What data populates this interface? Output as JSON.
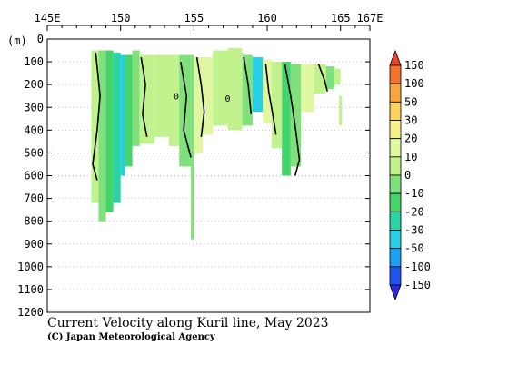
{
  "chart_data": {
    "type": "heatmap",
    "title": "Current Velocity along Kuril line, May 2023",
    "credit": "(C) Japan Meteorological Agency",
    "y_unit": "(m)",
    "x_ticks": [
      "145E",
      "150",
      "155",
      "160",
      "165",
      "167E"
    ],
    "x_tick_values": [
      145,
      150,
      155,
      160,
      165,
      167
    ],
    "xlim": [
      145,
      167
    ],
    "y_ticks": [
      "0",
      "100",
      "200",
      "300",
      "400",
      "500",
      "600",
      "700",
      "800",
      "900",
      "1000",
      "1100",
      "1200"
    ],
    "y_tick_values": [
      0,
      100,
      200,
      300,
      400,
      500,
      600,
      700,
      800,
      900,
      1000,
      1100,
      1200
    ],
    "ylim": [
      0,
      1200
    ],
    "y_inverted": true,
    "grid": true,
    "contour_labels": [
      {
        "text": "0",
        "lon": 153.8,
        "depth": 265
      },
      {
        "text": "0",
        "lon": 157.3,
        "depth": 275
      }
    ],
    "colorbar": {
      "labels": [
        "150",
        "100",
        "50",
        "30",
        "20",
        "10",
        "0",
        "-10",
        "-20",
        "-30",
        "-50",
        "-100",
        "-150"
      ],
      "bins": [
        {
          "lo": 150,
          "hi": null,
          "color": "#e8452a"
        },
        {
          "lo": 100,
          "hi": 150,
          "color": "#f4722f"
        },
        {
          "lo": 50,
          "hi": 100,
          "color": "#f9a440"
        },
        {
          "lo": 30,
          "hi": 50,
          "color": "#fbd35a"
        },
        {
          "lo": 20,
          "hi": 30,
          "color": "#f6f28a"
        },
        {
          "lo": 10,
          "hi": 20,
          "color": "#def7a0"
        },
        {
          "lo": 0,
          "hi": 10,
          "color": "#c2f28e"
        },
        {
          "lo": -10,
          "hi": 0,
          "color": "#80e07c"
        },
        {
          "lo": -20,
          "hi": -10,
          "color": "#45d36c"
        },
        {
          "lo": -30,
          "hi": -20,
          "color": "#2ad2a6"
        },
        {
          "lo": -50,
          "hi": -30,
          "color": "#27cfe2"
        },
        {
          "lo": -100,
          "hi": -50,
          "color": "#1f9ff2"
        },
        {
          "lo": -150,
          "hi": -100,
          "color": "#1f55ee"
        },
        {
          "lo": null,
          "hi": -150,
          "color": "#3128d9"
        }
      ]
    },
    "cells": [
      {
        "lon0": 148.0,
        "lon1": 148.5,
        "d0": 50,
        "d1": 720,
        "v": 5
      },
      {
        "lon0": 148.5,
        "lon1": 149.0,
        "d0": 50,
        "d1": 800,
        "v": -5
      },
      {
        "lon0": 149.0,
        "lon1": 149.5,
        "d0": 50,
        "d1": 760,
        "v": -15
      },
      {
        "lon0": 149.5,
        "lon1": 150.0,
        "d0": 60,
        "d1": 720,
        "v": -28
      },
      {
        "lon0": 150.0,
        "lon1": 150.3,
        "d0": 70,
        "d1": 600,
        "v": -35
      },
      {
        "lon0": 150.3,
        "lon1": 150.8,
        "d0": 70,
        "d1": 560,
        "v": -18
      },
      {
        "lon0": 150.8,
        "lon1": 151.3,
        "d0": 50,
        "d1": 470,
        "v": -10
      },
      {
        "lon0": 151.3,
        "lon1": 152.3,
        "d0": 70,
        "d1": 460,
        "v": 5
      },
      {
        "lon0": 152.3,
        "lon1": 153.3,
        "d0": 70,
        "d1": 430,
        "v": 8
      },
      {
        "lon0": 153.3,
        "lon1": 154.0,
        "d0": 70,
        "d1": 470,
        "v": 3
      },
      {
        "lon0": 154.0,
        "lon1": 154.8,
        "d0": 70,
        "d1": 560,
        "v": -5
      },
      {
        "lon0": 154.8,
        "lon1": 155.0,
        "d0": 70,
        "d1": 880,
        "v": -8
      },
      {
        "lon0": 155.0,
        "lon1": 155.6,
        "d0": 80,
        "d1": 500,
        "v": 12
      },
      {
        "lon0": 155.6,
        "lon1": 156.3,
        "d0": 80,
        "d1": 420,
        "v": 10
      },
      {
        "lon0": 156.3,
        "lon1": 157.3,
        "d0": 50,
        "d1": 380,
        "v": 6
      },
      {
        "lon0": 157.3,
        "lon1": 158.3,
        "d0": 40,
        "d1": 400,
        "v": 4
      },
      {
        "lon0": 158.3,
        "lon1": 159.0,
        "d0": 70,
        "d1": 380,
        "v": -8
      },
      {
        "lon0": 159.0,
        "lon1": 159.7,
        "d0": 80,
        "d1": 320,
        "v": -40
      },
      {
        "lon0": 159.7,
        "lon1": 160.3,
        "d0": 90,
        "d1": 370,
        "v": 12
      },
      {
        "lon0": 160.3,
        "lon1": 161.0,
        "d0": 100,
        "d1": 480,
        "v": 8
      },
      {
        "lon0": 161.0,
        "lon1": 161.6,
        "d0": 100,
        "d1": 600,
        "v": -15
      },
      {
        "lon0": 161.6,
        "lon1": 162.3,
        "d0": 110,
        "d1": 560,
        "v": -10
      },
      {
        "lon0": 162.3,
        "lon1": 163.2,
        "d0": 110,
        "d1": 320,
        "v": 10
      },
      {
        "lon0": 163.2,
        "lon1": 164.0,
        "d0": 110,
        "d1": 240,
        "v": 6
      },
      {
        "lon0": 164.0,
        "lon1": 164.6,
        "d0": 120,
        "d1": 220,
        "v": -6
      },
      {
        "lon0": 164.6,
        "lon1": 165.0,
        "d0": 130,
        "d1": 200,
        "v": 4
      },
      {
        "lon0": 164.9,
        "lon1": 165.1,
        "d0": 250,
        "d1": 380,
        "v": 5
      }
    ],
    "contours_zero": [
      [
        [
          148.3,
          60
        ],
        [
          148.6,
          250
        ],
        [
          148.4,
          400
        ],
        [
          148.1,
          550
        ],
        [
          148.4,
          620
        ]
      ],
      [
        [
          151.4,
          80
        ],
        [
          151.7,
          200
        ],
        [
          151.5,
          330
        ],
        [
          151.8,
          430
        ]
      ],
      [
        [
          154.1,
          100
        ],
        [
          154.5,
          250
        ],
        [
          154.3,
          400
        ],
        [
          154.8,
          520
        ]
      ],
      [
        [
          155.2,
          80
        ],
        [
          155.5,
          200
        ],
        [
          155.7,
          320
        ],
        [
          155.5,
          430
        ]
      ],
      [
        [
          158.4,
          80
        ],
        [
          158.7,
          200
        ],
        [
          158.9,
          330
        ]
      ],
      [
        [
          159.9,
          110
        ],
        [
          160.1,
          230
        ],
        [
          160.4,
          340
        ],
        [
          160.6,
          420
        ]
      ],
      [
        [
          161.2,
          110
        ],
        [
          161.6,
          250
        ],
        [
          161.9,
          380
        ],
        [
          162.2,
          530
        ],
        [
          161.9,
          600
        ]
      ],
      [
        [
          163.5,
          110
        ],
        [
          163.9,
          180
        ],
        [
          164.1,
          230
        ]
      ]
    ]
  }
}
